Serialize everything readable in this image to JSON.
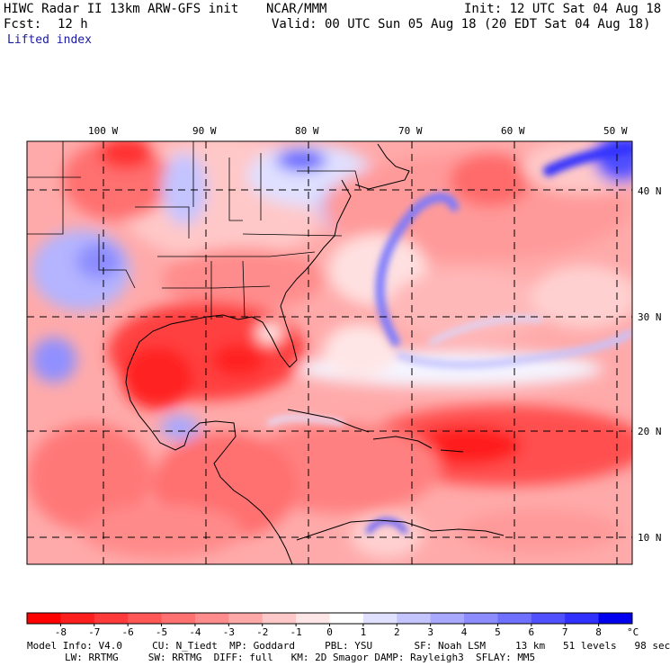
{
  "header": {
    "model": "HIWC Radar II 13km ARW-GFS init",
    "org": "NCAR/MMM",
    "init": "Init: 12 UTC Sat 04 Aug 18",
    "fcst_label": "Fcst:",
    "fcst_value": "12 h",
    "valid": "Valid: 00 UTC Sun 05 Aug 18 (20 EDT Sat 04 Aug 18)",
    "field": "Lifted index"
  },
  "map": {
    "lon_labels": [
      "100 W",
      "90 W",
      "80 W",
      "70 W",
      "60 W",
      "50 W"
    ],
    "lat_labels": [
      "40 N",
      "30 N",
      "20 N",
      "10 N"
    ]
  },
  "colorbar": {
    "ticks": [
      "-8",
      "-7",
      "-6",
      "-5",
      "-4",
      "-3",
      "-2",
      "-1",
      "0",
      "1",
      "2",
      "3",
      "4",
      "5",
      "6",
      "7",
      "8"
    ],
    "unit": "°C",
    "colors": [
      "#ff0000",
      "#ff1e1e",
      "#ff3a3a",
      "#ff5656",
      "#ff7070",
      "#ff8c8c",
      "#ffa8a8",
      "#ffc8c8",
      "#ffe6e6",
      "#ffffff",
      "#e0e0ff",
      "#c4c4ff",
      "#a8a8ff",
      "#8c8cff",
      "#7070ff",
      "#5050ff",
      "#3030ff",
      "#0000ee"
    ]
  },
  "model_info": {
    "line1": "Model Info: V4.0     CU: N_Tiedt  MP: Goddard     PBL: YSU       SF: Noah LSM     13 km   51 levels   98 sec",
    "line2": "LW: RRTMG     SW: RRTMG  DIFF: full   KM: 2D Smagor DAMP: Rayleigh3  SFLAY: MM5"
  }
}
